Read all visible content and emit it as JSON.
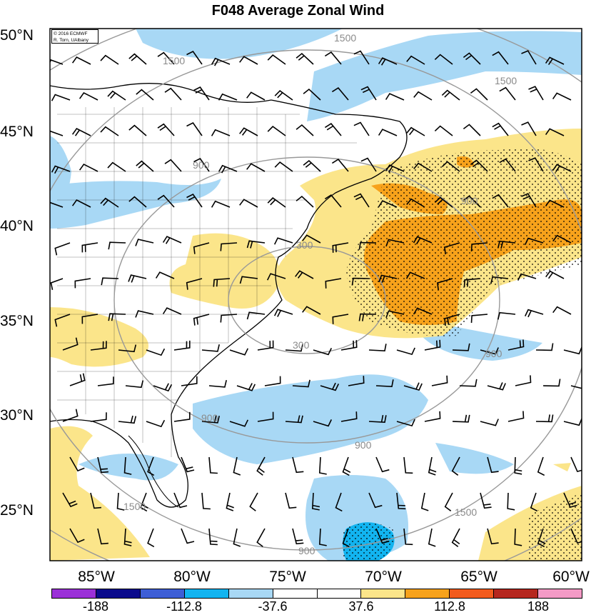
{
  "title": "F048 Average Zonal Wind",
  "credit": {
    "line1": "© 2016 ECMWF",
    "line2": "R. Torn, UAlbany"
  },
  "lat_labels": [
    "50°N",
    "45°N",
    "40°N",
    "35°N",
    "30°N",
    "25°N"
  ],
  "lon_labels": [
    "85°W",
    "80°W",
    "75°W",
    "70°W",
    "65°W",
    "60°W"
  ],
  "contour_labels": [
    "300",
    "300",
    "900",
    "900",
    "900",
    "900",
    "1500",
    "1500",
    "1500",
    "1500",
    "1500",
    "900",
    "900"
  ],
  "colorbar": {
    "colors": [
      "#9b30d8",
      "#0a0a8c",
      "#3d5ed6",
      "#12b4f0",
      "#a8d8f5",
      "#ffffff",
      "#ffffff",
      "#fbe58a",
      "#f7a21b",
      "#f25b1d",
      "#b5261e",
      "#f49ac6"
    ],
    "labels": [
      "-188",
      "-112.8",
      "-37.6",
      "37.6",
      "112.8",
      "188"
    ]
  },
  "colors": {
    "positive_light": "#fbe58a",
    "positive_mid": "#f7a21b",
    "negative_light": "#a8d8f5",
    "negative_mid": "#12b4f0",
    "contour": "#999999"
  }
}
